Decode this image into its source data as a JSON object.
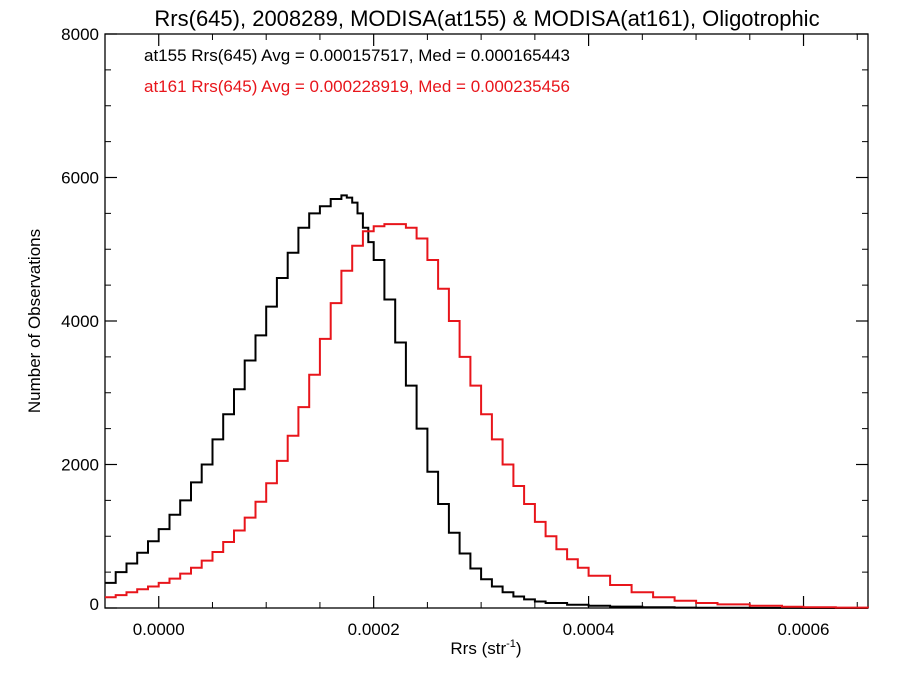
{
  "chart_data": {
    "type": "line",
    "title": "Rrs(645), 2008289, MODISA(at155) & MODISA(at161), Oligotrophic",
    "xlabel": "Rrs (str",
    "xlabel_sup": "-1",
    "xlabel_close": ")",
    "ylabel": "Number of Observations",
    "xlim": [
      -5e-05,
      0.00066
    ],
    "ylim": [
      0,
      8000
    ],
    "x_ticks": [
      0.0,
      0.0002,
      0.0004,
      0.0006
    ],
    "x_tick_labels": [
      "0.0000",
      "0.0002",
      "0.0004",
      "0.0006"
    ],
    "y_ticks": [
      0,
      2000,
      4000,
      6000,
      8000
    ],
    "y_tick_labels": [
      "0",
      "2000",
      "4000",
      "6000",
      "8000"
    ],
    "grid": false,
    "step": true,
    "annotations": [
      {
        "text": "at155 Rrs(645) Avg = 0.000157517, Med = 0.000165443",
        "color": "#000000"
      },
      {
        "text": "at161 Rrs(645) Avg = 0.000228919, Med = 0.000235456",
        "color": "#e8151b"
      }
    ],
    "series": [
      {
        "color": "#000000",
        "x": [
          -5e-05,
          -4e-05,
          -3e-05,
          -2e-05,
          -1e-05,
          0.0,
          1e-05,
          2e-05,
          3e-05,
          4e-05,
          5e-05,
          6e-05,
          7e-05,
          8e-05,
          9e-05,
          0.0001,
          0.00011,
          0.00012,
          0.00013,
          0.00014,
          0.00015,
          0.00016,
          0.00017,
          0.000175,
          0.00018,
          0.000185,
          0.00019,
          0.000195,
          0.0002,
          0.00021,
          0.00022,
          0.00023,
          0.00024,
          0.00025,
          0.00026,
          0.00027,
          0.00028,
          0.00029,
          0.0003,
          0.00031,
          0.00032,
          0.00033,
          0.00034,
          0.00035,
          0.00036,
          0.00038,
          0.0004,
          0.00042,
          0.00045,
          0.00048,
          0.0005,
          0.00055,
          0.0006,
          0.00066
        ],
        "y": [
          350,
          500,
          620,
          770,
          930,
          1100,
          1300,
          1500,
          1750,
          2000,
          2350,
          2700,
          3050,
          3450,
          3800,
          4200,
          4600,
          4950,
          5300,
          5500,
          5600,
          5700,
          5750,
          5720,
          5650,
          5500,
          5300,
          5100,
          4850,
          4300,
          3700,
          3100,
          2500,
          1900,
          1450,
          1050,
          760,
          550,
          400,
          300,
          220,
          160,
          120,
          90,
          70,
          45,
          30,
          20,
          10,
          5,
          3,
          1,
          0,
          0
        ]
      },
      {
        "color": "#e8151b",
        "x": [
          -5e-05,
          -4e-05,
          -3e-05,
          -2e-05,
          -1e-05,
          0.0,
          1e-05,
          2e-05,
          3e-05,
          4e-05,
          5e-05,
          6e-05,
          7e-05,
          8e-05,
          9e-05,
          0.0001,
          0.00011,
          0.00012,
          0.00013,
          0.00014,
          0.00015,
          0.00016,
          0.00017,
          0.00018,
          0.00019,
          0.0002,
          0.00021,
          0.00022,
          0.00023,
          0.00024,
          0.00025,
          0.00026,
          0.00027,
          0.00028,
          0.00029,
          0.0003,
          0.00031,
          0.00032,
          0.00033,
          0.00034,
          0.00035,
          0.00036,
          0.00037,
          0.00038,
          0.00039,
          0.0004,
          0.00042,
          0.00044,
          0.00046,
          0.00048,
          0.0005,
          0.00052,
          0.00055,
          0.00058,
          0.0006,
          0.00063,
          0.00066
        ],
        "y": [
          150,
          180,
          220,
          260,
          300,
          350,
          410,
          480,
          560,
          660,
          780,
          920,
          1080,
          1260,
          1480,
          1740,
          2050,
          2400,
          2800,
          3250,
          3750,
          4250,
          4700,
          5050,
          5250,
          5320,
          5350,
          5350,
          5300,
          5150,
          4850,
          4450,
          4000,
          3500,
          3100,
          2700,
          2350,
          2000,
          1700,
          1450,
          1200,
          1000,
          820,
          680,
          560,
          450,
          320,
          220,
          150,
          100,
          70,
          50,
          30,
          18,
          10,
          5,
          2
        ]
      }
    ]
  }
}
